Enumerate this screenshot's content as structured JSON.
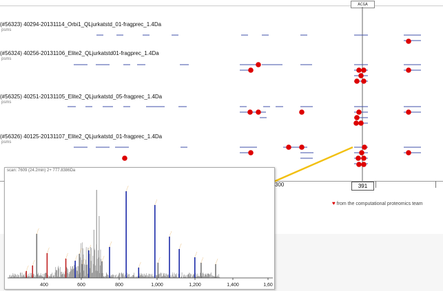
{
  "tracks": [
    {
      "title": "(#56323) 40294-20131114_Orbi1_QLjurkatstd_01-fragprec_1.4Da",
      "sub": "psms"
    },
    {
      "title": "(#56324) 40256-20131106_Elite2_QLjurkatstd01-fragprec_1.4Da",
      "sub": "psms"
    },
    {
      "title": "(#56325) 40251-20131105_Elite2_QLjurkatstd_05-fragprec_1.4Da",
      "sub": "psms"
    },
    {
      "title": "(#56326) 40125-20131107_Elite2_QLjurkatstd_01-fragprec_1.4Da",
      "sub": "psms"
    }
  ],
  "axis": {
    "tick_300": "300",
    "position": "391"
  },
  "cursor_label": "ACGA",
  "colors": {
    "dot": "#dd0000",
    "line": "#3f4fa8",
    "highlight": "#f2c012",
    "peak_blue": "#1a2aa8",
    "peak_red": "#c02020"
  },
  "spectrum": {
    "title": "scan: 7609 (24.2min) 2+ 777.8386Da",
    "x_ticks": [
      "400",
      "600",
      "800",
      "1,000",
      "1,200",
      "1,400",
      "1,60"
    ]
  },
  "credit": {
    "heart": "♥",
    "text": "from the computational proteomics team"
  }
}
